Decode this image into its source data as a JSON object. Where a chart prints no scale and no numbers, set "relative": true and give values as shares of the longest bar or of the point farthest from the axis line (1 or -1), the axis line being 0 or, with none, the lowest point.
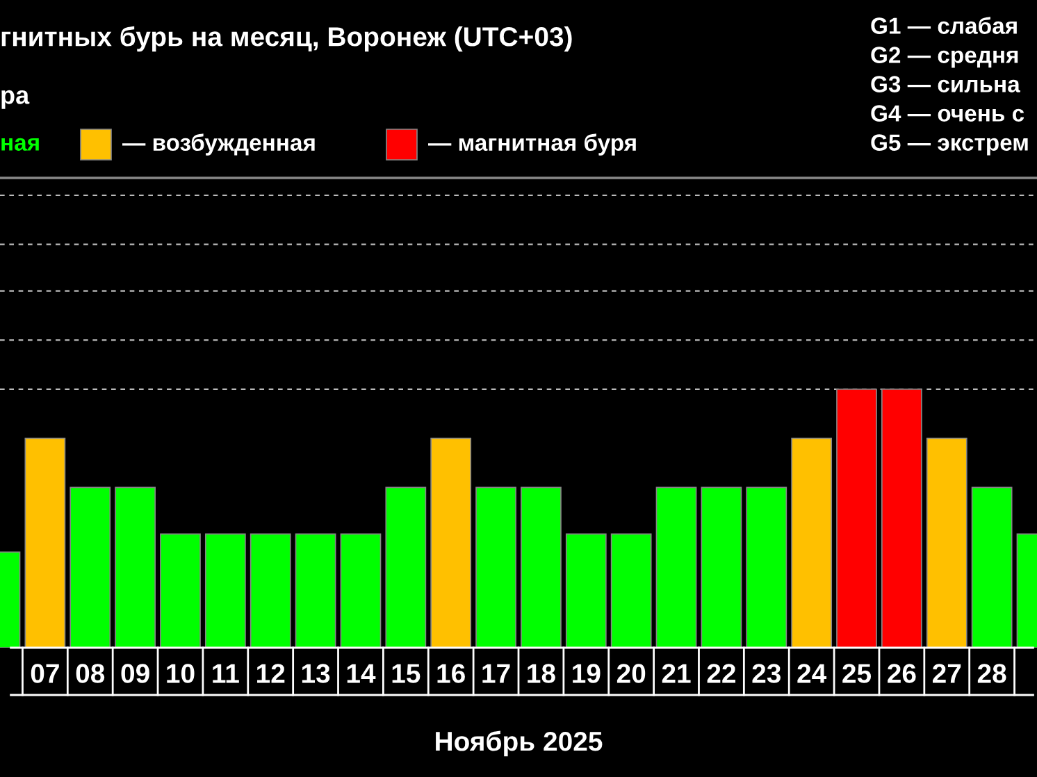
{
  "chart_data": {
    "type": "bar",
    "title": "гнитных бурь на месяц, Воронеж (UTC+03)",
    "xlabel": "Ноябрь 2025",
    "categories": [
      null,
      "07",
      "08",
      "09",
      "10",
      "11",
      "12",
      "13",
      "14",
      "15",
      "16",
      "17",
      "18",
      "19",
      "20",
      "21",
      "22",
      "23",
      "24",
      "25",
      "26",
      "27",
      "28",
      null
    ],
    "relative": true,
    "ref_lines": [
      {
        "axis": "y",
        "value": 1,
        "color": "#bbbbbb",
        "line_style": "dashed"
      },
      {
        "axis": "y",
        "value": 1.19,
        "color": "#bbbbbb",
        "line_style": "dashed"
      },
      {
        "axis": "y",
        "value": 1.38,
        "color": "#bbbbbb",
        "line_style": "dashed"
      },
      {
        "axis": "y",
        "value": 1.56,
        "color": "#bbbbbb",
        "line_style": "dashed"
      },
      {
        "axis": "y",
        "value": 1.75,
        "color": "#bbbbbb",
        "line_style": "dashed"
      }
    ],
    "legend": "top left",
    "series": [
      {
        "name": "ная",
        "color": "#00ff00",
        "values": [
          0.37,
          null,
          0.62,
          0.62,
          0.44,
          0.44,
          0.44,
          0.44,
          0.44,
          0.62,
          null,
          0.62,
          0.62,
          0.44,
          0.44,
          0.62,
          0.62,
          0.62,
          null,
          null,
          null,
          null,
          0.62,
          0.44
        ]
      },
      {
        "name": "— возбужденная",
        "color": "#ffc000",
        "values": [
          null,
          0.81,
          null,
          null,
          null,
          null,
          null,
          null,
          null,
          null,
          0.81,
          null,
          null,
          null,
          null,
          null,
          null,
          null,
          0.81,
          null,
          null,
          0.81,
          null,
          null
        ]
      },
      {
        "name": "— магнитная буря",
        "color": "#ff0000",
        "values": [
          null,
          null,
          null,
          null,
          null,
          null,
          null,
          null,
          null,
          null,
          null,
          null,
          null,
          null,
          null,
          null,
          null,
          null,
          null,
          1,
          1,
          null,
          null,
          null
        ]
      }
    ],
    "annotations": [
      "ра",
      "G1 — слабая",
      "G2 — средня",
      "G3 — сильна",
      "G4 — очень с",
      "G5 — экстрем"
    ]
  }
}
